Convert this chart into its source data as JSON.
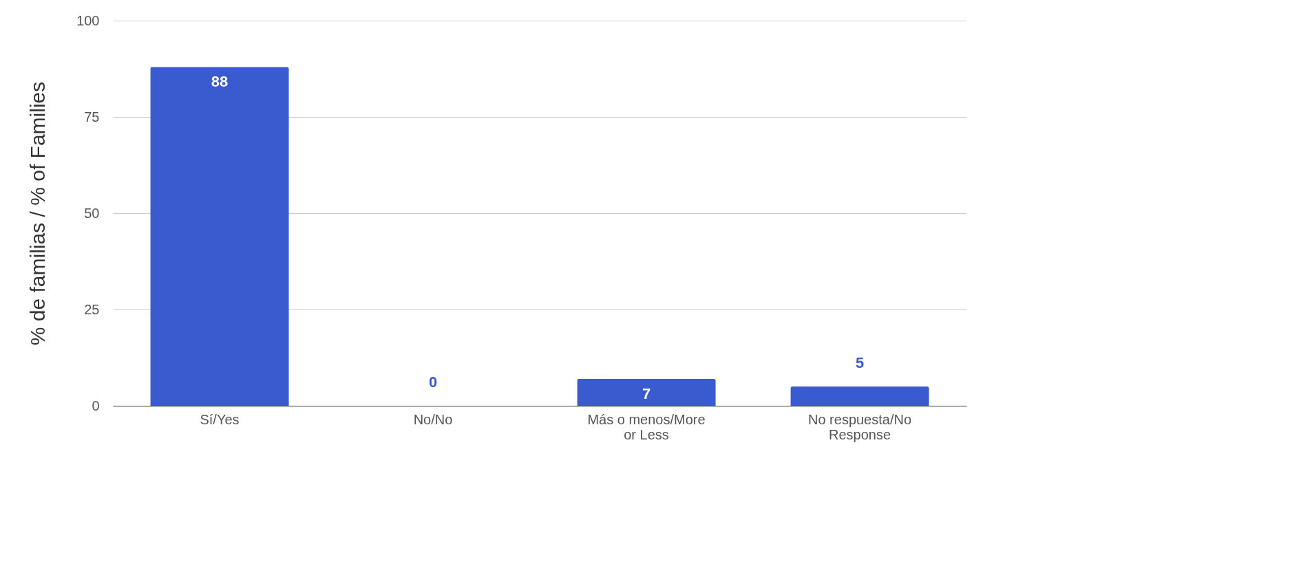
{
  "chart_data": {
    "type": "bar",
    "ylabel": "% de familias / % of Families",
    "categories": [
      "Sí/Yes",
      "No/No",
      "Más o menos/More or Less",
      "No respuesta/No Response"
    ],
    "values": [
      88,
      0,
      7,
      5
    ],
    "color": "#3a5bcf",
    "ylim": [
      0,
      100
    ],
    "yticks": [
      0,
      25,
      50,
      75,
      100
    ],
    "grid": "y",
    "data_labels": true
  }
}
